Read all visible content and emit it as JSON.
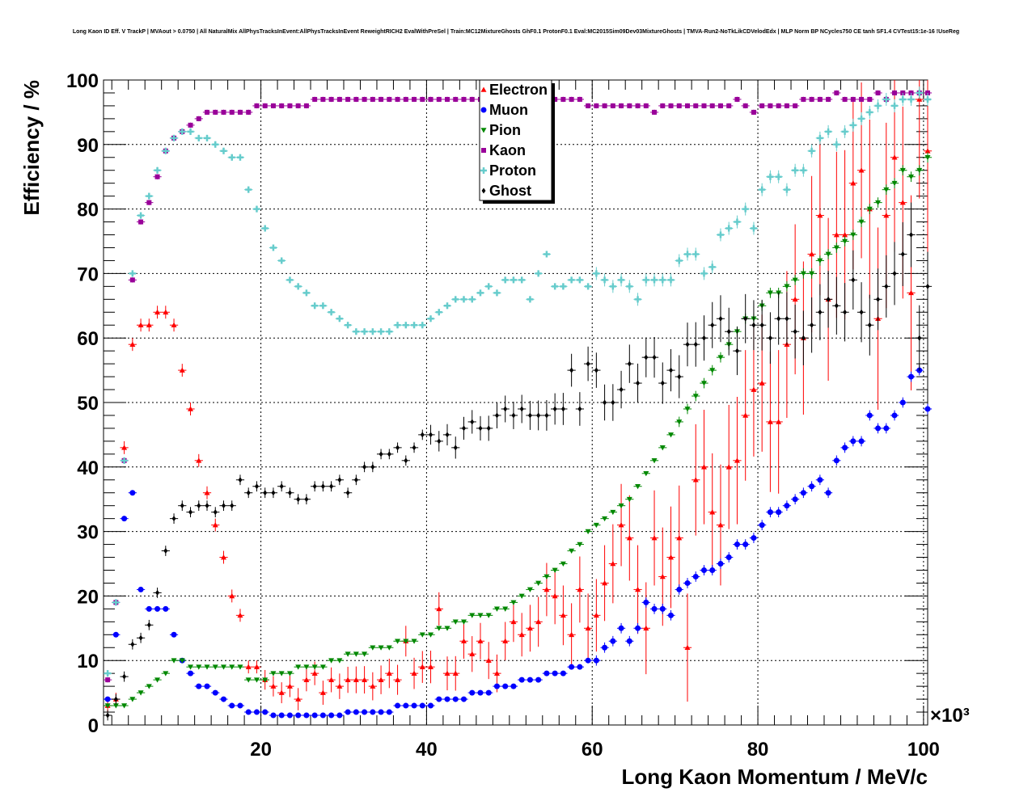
{
  "chart_data": {
    "type": "scatter",
    "title": "Long Kaon ID Eff. V TrackP | MVAout > 0.0750 | All NaturalMix AllPhysTracksInEvent:AllPhysTracksInEvent ReweightRICH2 EvalWithPreSel | Train:MC12MixtureGhosts GhF0.1 ProtonF0.1 Eval:MC2015Sim09Dev03MixtureGhosts | TMVA-Run2-NoTkLikCDVelodEdx | MLP Norm BP NCycles750 CE tanh SF1.4 CVTest15:1e-16 !UseReg",
    "xlabel": "Long Kaon Momentum / MeV/c",
    "ylabel": "Efficiency / %",
    "x_multiplier": "×10³",
    "xlim": [
      1000,
      100500
    ],
    "ylim": [
      0,
      100
    ],
    "x_ticks": [
      20,
      40,
      60,
      80,
      100
    ],
    "y_ticks": [
      0,
      10,
      20,
      30,
      40,
      50,
      60,
      70,
      80,
      90,
      100
    ],
    "legend": {
      "position": "top-center",
      "entries": [
        "Electron",
        "Muon",
        "Pion",
        "Kaon",
        "Proton",
        "Ghost"
      ]
    },
    "x": [
      1.5,
      2.5,
      3.5,
      4.5,
      5.5,
      6.5,
      7.5,
      8.5,
      9.5,
      10.5,
      11.5,
      12.5,
      13.5,
      14.5,
      15.5,
      16.5,
      17.5,
      18.5,
      19.5,
      20.5,
      21.5,
      22.5,
      23.5,
      24.5,
      25.5,
      26.5,
      27.5,
      28.5,
      29.5,
      30.5,
      31.5,
      32.5,
      33.5,
      34.5,
      35.5,
      36.5,
      37.5,
      38.5,
      39.5,
      40.5,
      41.5,
      42.5,
      43.5,
      44.5,
      45.5,
      46.5,
      47.5,
      48.5,
      49.5,
      50.5,
      51.5,
      52.5,
      53.5,
      54.5,
      55.5,
      56.5,
      57.5,
      58.5,
      59.5,
      60.5,
      61.5,
      62.5,
      63.5,
      64.5,
      65.5,
      66.5,
      67.5,
      68.5,
      69.5,
      70.5,
      71.5,
      72.5,
      73.5,
      74.5,
      75.5,
      76.5,
      77.5,
      78.5,
      79.5,
      80.5,
      81.5,
      82.5,
      83.5,
      84.5,
      85.5,
      86.5,
      87.5,
      88.5,
      89.5,
      90.5,
      91.5,
      92.5,
      93.5,
      94.5,
      95.5,
      96.5,
      97.5,
      98.5,
      99.5,
      100.5
    ],
    "series": [
      {
        "name": "Electron",
        "color": "#ff0000",
        "marker": "triangle-up",
        "values": [
          3,
          4,
          43,
          59,
          62,
          62,
          64,
          64,
          62,
          55,
          49,
          41,
          36,
          31,
          26,
          20,
          17,
          9,
          9,
          7,
          6,
          5,
          6,
          4,
          7,
          8,
          5,
          7,
          6,
          7,
          7,
          7,
          6,
          7,
          8,
          7,
          13,
          8,
          9,
          9,
          18,
          8,
          8,
          13,
          11,
          13,
          10,
          8,
          13,
          16,
          14,
          15,
          16,
          21,
          20,
          17,
          14,
          21,
          15,
          17,
          22,
          25,
          31,
          29,
          21,
          15,
          29,
          23,
          26,
          29,
          12,
          38,
          40,
          33,
          31,
          40,
          41,
          48,
          52,
          53,
          47,
          47,
          59,
          66,
          60,
          73,
          79,
          66,
          76,
          76,
          84,
          86,
          80,
          63,
          79,
          88,
          81,
          67,
          97,
          89
        ]
      },
      {
        "name": "Muon",
        "color": "#0000ff",
        "marker": "circle",
        "values": [
          4,
          14,
          32,
          36,
          21,
          18,
          18,
          18,
          14,
          10,
          8,
          6,
          6,
          5,
          4,
          3,
          3,
          2,
          2,
          2,
          1.5,
          1.5,
          1.5,
          1.5,
          1.5,
          1.5,
          1.5,
          1.5,
          1.5,
          2,
          2,
          2,
          2,
          2,
          2,
          3,
          3,
          3,
          3,
          3,
          4,
          4,
          4,
          4,
          5,
          5,
          5,
          6,
          6,
          6,
          7,
          7,
          7,
          8,
          8,
          8,
          9,
          9,
          10,
          10,
          12,
          13,
          15,
          13,
          15,
          19,
          18,
          18,
          17,
          21,
          22,
          23,
          24,
          24,
          25,
          26,
          28,
          28,
          29,
          31,
          33,
          33,
          34,
          35,
          36,
          37,
          38,
          36,
          41,
          43,
          44,
          44,
          48,
          46,
          46,
          48,
          50,
          54,
          55,
          49
        ]
      },
      {
        "name": "Pion",
        "color": "#008800",
        "marker": "triangle-down",
        "values": [
          3,
          3,
          3,
          4,
          5,
          6,
          7,
          8,
          10,
          10,
          9,
          9,
          9,
          9,
          9,
          9,
          9,
          7,
          7,
          7,
          8,
          8,
          8,
          9,
          9,
          9,
          9,
          10,
          10,
          11,
          11,
          11,
          12,
          12,
          12,
          13,
          13,
          13,
          14,
          14,
          15,
          15,
          16,
          16,
          17,
          17,
          17,
          18,
          18,
          19,
          20,
          21,
          22,
          23,
          24,
          25,
          27,
          28,
          30,
          31,
          32,
          33,
          34,
          35,
          37,
          39,
          41,
          43,
          45,
          47,
          49,
          51,
          53,
          55,
          57,
          59,
          61,
          63,
          63,
          65,
          67,
          67,
          68,
          69,
          70,
          70,
          72,
          73,
          74,
          75,
          76,
          78,
          80,
          81,
          83,
          84,
          86,
          85,
          86,
          88
        ]
      },
      {
        "name": "Kaon",
        "color": "#990099",
        "marker": "square",
        "values": [
          7,
          19,
          41,
          69,
          78,
          81,
          85,
          89,
          91,
          92,
          93,
          94,
          95,
          95,
          95,
          95,
          95,
          95,
          96,
          96,
          96,
          96,
          96,
          96,
          96,
          97,
          97,
          97,
          97,
          97,
          97,
          97,
          97,
          97,
          97,
          97,
          97,
          97,
          97,
          97,
          97,
          97,
          97,
          97,
          97,
          97,
          97,
          97,
          97,
          97,
          97,
          97,
          97,
          97,
          97,
          97,
          97,
          97,
          96,
          96,
          96,
          96,
          96,
          96,
          96,
          96,
          95,
          96,
          96,
          96,
          96,
          96,
          96,
          96,
          96,
          96,
          97,
          96,
          95,
          96,
          96,
          96,
          96,
          96,
          97,
          97,
          97,
          97,
          98,
          97,
          97,
          97,
          97,
          98,
          97,
          98,
          98,
          98,
          98,
          98
        ]
      },
      {
        "name": "Proton",
        "color": "#66cccc",
        "marker": "cross",
        "values": [
          8,
          19,
          41,
          70,
          79,
          82,
          86,
          89,
          91,
          92,
          92,
          91,
          91,
          90,
          89,
          88,
          88,
          83,
          80,
          77,
          74,
          72,
          69,
          68,
          67,
          65,
          65,
          64,
          63,
          62,
          61,
          61,
          61,
          61,
          61,
          62,
          62,
          62,
          62,
          63,
          64,
          65,
          66,
          66,
          66,
          67,
          68,
          67,
          69,
          69,
          69,
          66,
          70,
          73,
          68,
          68,
          69,
          69,
          68,
          70,
          69,
          68,
          69,
          68,
          66,
          69,
          69,
          69,
          69,
          72,
          73,
          73,
          70,
          71,
          76,
          77,
          78,
          80,
          77,
          83,
          85,
          85,
          83,
          86,
          86,
          89,
          91,
          92,
          90,
          92,
          93,
          94,
          95,
          96,
          97,
          96,
          97,
          97,
          98,
          97
        ]
      },
      {
        "name": "Ghost",
        "color": "#000000",
        "marker": "diamond",
        "values": [
          1.5,
          4,
          7.5,
          12.5,
          13.5,
          15.5,
          20.5,
          27,
          32,
          34,
          33,
          34,
          34,
          33,
          34,
          34,
          38,
          36,
          37,
          36,
          36,
          37,
          36,
          35,
          35,
          37,
          37,
          37,
          38,
          36,
          38,
          40,
          40,
          42,
          42,
          43,
          41,
          43,
          45,
          45,
          44,
          45,
          43,
          46,
          47,
          46,
          46,
          48,
          49,
          48,
          49,
          48,
          48,
          48,
          49,
          49,
          55,
          49,
          56,
          55,
          50,
          50,
          52,
          56,
          53,
          57,
          57,
          53,
          55,
          54,
          59,
          59,
          60,
          62,
          63,
          61,
          58,
          63,
          62,
          62,
          60,
          63,
          63,
          61,
          60,
          62,
          64,
          66,
          65,
          64,
          69,
          64,
          62,
          66,
          68,
          70,
          73,
          76,
          60,
          68
        ]
      }
    ]
  }
}
